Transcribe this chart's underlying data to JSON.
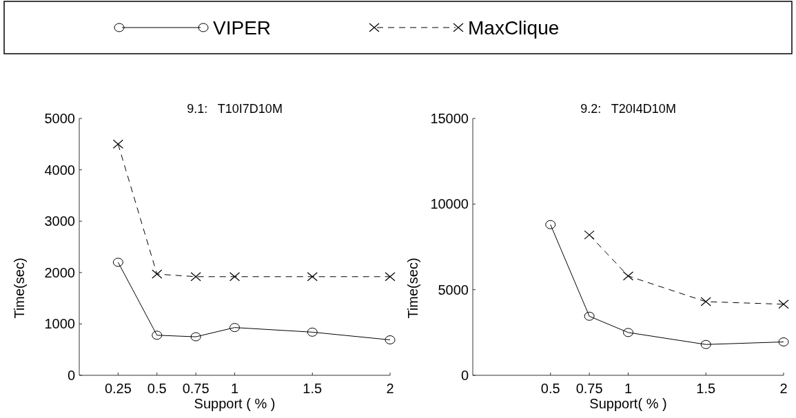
{
  "chart_data": [
    {
      "type": "line",
      "title": "9.1:   T10I7D10M",
      "xlabel": "Support ( % )",
      "ylabel": "Time(sec)",
      "x": [
        0.25,
        0.5,
        0.75,
        1,
        1.5,
        2
      ],
      "xlim": [
        0,
        2
      ],
      "xticks": [
        0.25,
        0.5,
        0.75,
        1,
        1.5,
        2
      ],
      "ylim": [
        0,
        5000
      ],
      "yticks": [
        0,
        1000,
        2000,
        3000,
        4000,
        5000
      ],
      "grid": false,
      "legend": "top",
      "series": [
        {
          "name": "VIPER",
          "color": "#000000",
          "marker": "circle",
          "line_style": "solid",
          "values": [
            2200,
            780,
            750,
            930,
            840,
            690
          ]
        },
        {
          "name": "MaxClique",
          "color": "#000000",
          "marker": "cross",
          "line_style": "dashed",
          "values": [
            4500,
            1970,
            1920,
            1920,
            1920,
            1920
          ]
        }
      ]
    },
    {
      "type": "line",
      "title": "9.2:   T20I4D10M",
      "xlabel": "Support( % )",
      "ylabel": "Time(sec)",
      "x": [
        0.5,
        0.75,
        1,
        1.5,
        2
      ],
      "xlim": [
        0,
        2
      ],
      "xticks": [
        0.5,
        0.75,
        1,
        1.5,
        2
      ],
      "ylim": [
        0,
        15000
      ],
      "yticks": [
        0,
        5000,
        10000,
        15000
      ],
      "grid": false,
      "series": [
        {
          "color": "#000000",
          "marker": "circle",
          "line_style": "solid",
          "values": [
            8800,
            3450,
            2500,
            1800,
            1950
          ]
        },
        {
          "color": "#000000",
          "marker": "cross",
          "line_style": "dashed",
          "values": [
            null,
            8200,
            5800,
            4300,
            4150
          ]
        }
      ]
    }
  ]
}
